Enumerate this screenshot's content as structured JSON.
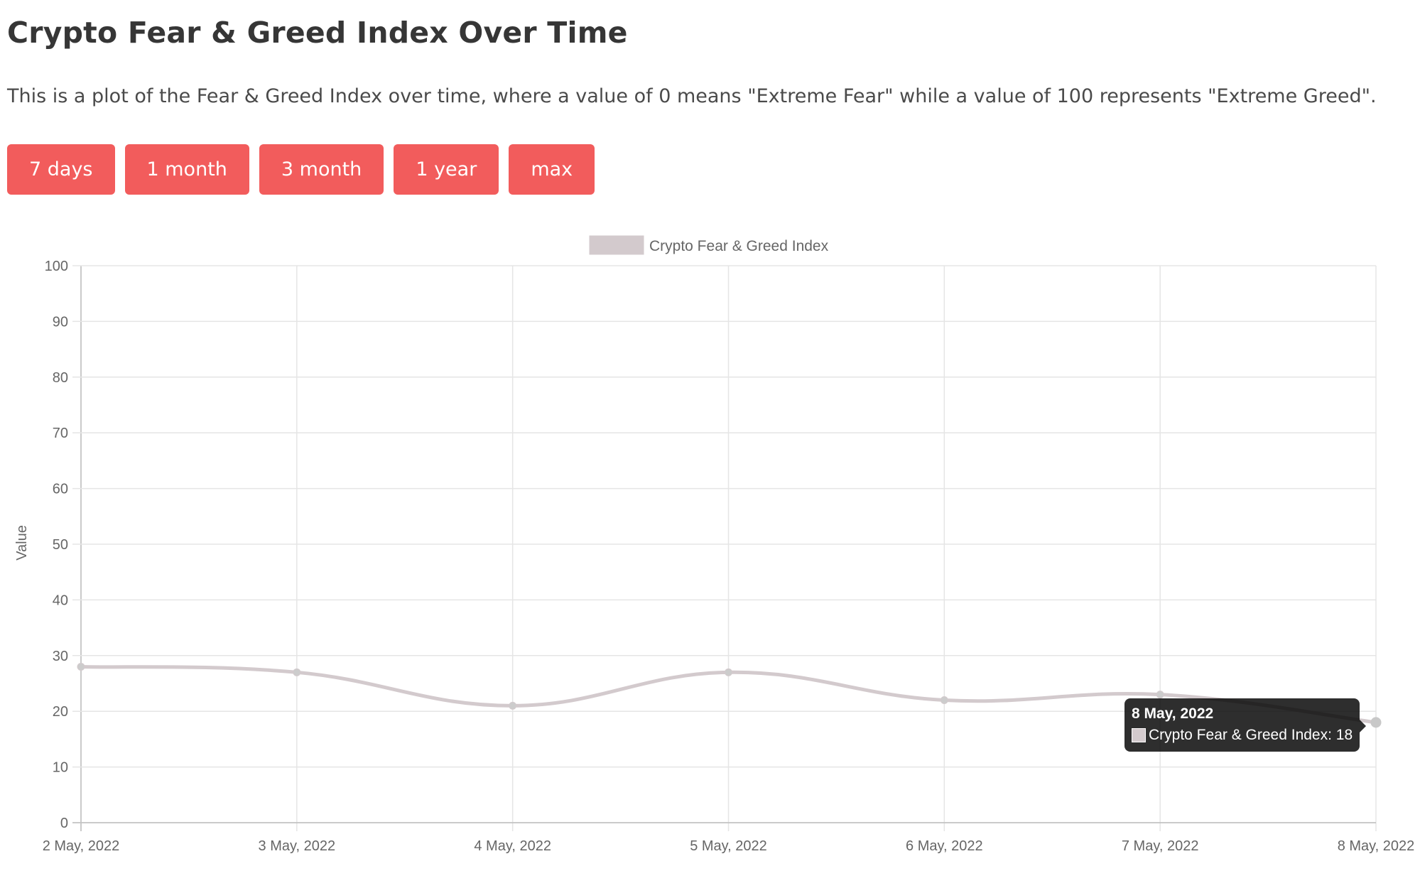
{
  "page": {
    "title": "Crypto Fear & Greed Index Over Time",
    "description": "This is a plot of the Fear & Greed Index over time, where a value of 0 means \"Extreme Fear\" while a value of 100 represents \"Extreme Greed\"."
  },
  "range_buttons": [
    {
      "label": "7 days"
    },
    {
      "label": "1 month"
    },
    {
      "label": "3 month"
    },
    {
      "label": "1 year"
    },
    {
      "label": "max"
    }
  ],
  "colors": {
    "button_bg": "#f25c5c",
    "button_text": "#ffffff",
    "series_line": "#d3cacd",
    "series_point": "#cccccc",
    "grid": "#e5e5e5",
    "axis_text": "#666666",
    "tooltip_bg": "#2b2b2b"
  },
  "tooltip": {
    "title": "8 May, 2022",
    "label": "Crypto Fear & Greed Index: 18"
  },
  "chart_data": {
    "type": "line",
    "title": "",
    "xlabel": "",
    "ylabel": "Value",
    "categories": [
      "2 May, 2022",
      "3 May, 2022",
      "4 May, 2022",
      "5 May, 2022",
      "6 May, 2022",
      "7 May, 2022",
      "8 May, 2022"
    ],
    "series": [
      {
        "name": "Crypto Fear & Greed Index",
        "values": [
          28,
          27,
          21,
          27,
          22,
          23,
          18
        ]
      }
    ],
    "ylim": [
      0,
      100
    ],
    "yticks": [
      0,
      10,
      20,
      30,
      40,
      50,
      60,
      70,
      80,
      90,
      100
    ],
    "grid": true,
    "legend": "top-center",
    "line_smooth": true
  }
}
